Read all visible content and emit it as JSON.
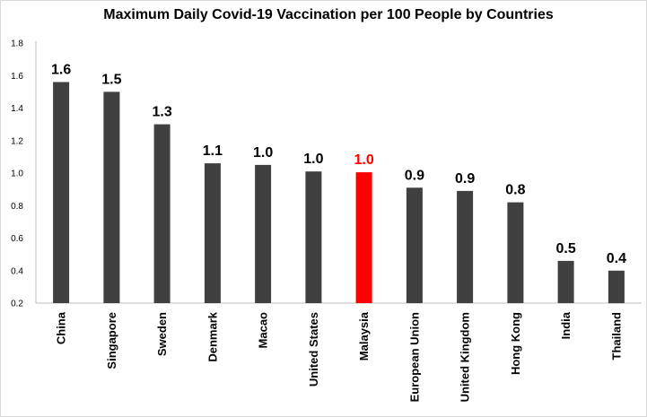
{
  "chart_data": {
    "type": "bar",
    "title": "Maximum Daily Covid-19 Vaccination per 100 People by Countries",
    "xlabel": "",
    "ylabel": "",
    "ylim": [
      0.2,
      1.8
    ],
    "yticks": [
      "0.2",
      "0.4",
      "0.6",
      "0.8",
      "1.0",
      "1.2",
      "1.4",
      "1.6",
      "1.8"
    ],
    "grid": false,
    "categories": [
      "China",
      "Singapore",
      "Sweden",
      "Denmark",
      "Macao",
      "United States",
      "Malaysia",
      "European Union",
      "United Kingdom",
      "Hong Kong",
      "India",
      "Thailand"
    ],
    "values": [
      1.56,
      1.5,
      1.3,
      1.06,
      1.05,
      1.01,
      1.005,
      0.91,
      0.89,
      0.82,
      0.46,
      0.4
    ],
    "data_labels": [
      "1.6",
      "1.5",
      "1.3",
      "1.1",
      "1.0",
      "1.0",
      "1.0",
      "0.9",
      "0.9",
      "0.8",
      "0.5",
      "0.4"
    ],
    "highlight_category": "Malaysia",
    "colors": {
      "bar": "#404040",
      "highlight": "#ff0000",
      "highlight_label": "#ff0000",
      "axis": "#bfbfbf"
    }
  }
}
